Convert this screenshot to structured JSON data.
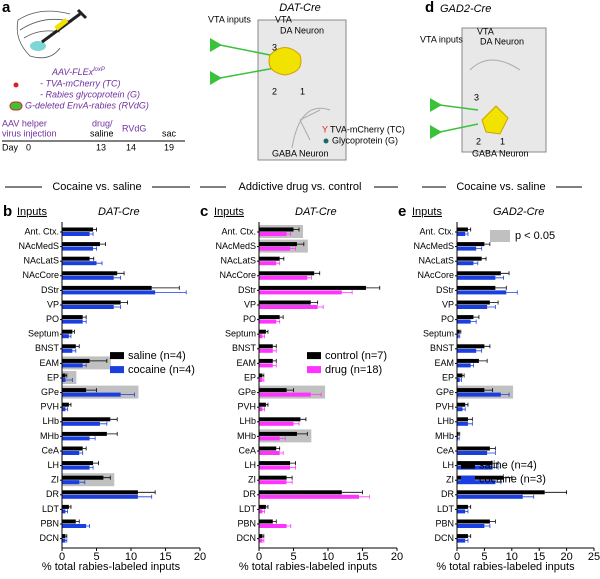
{
  "figure": {
    "panel_a": {
      "letter": "a",
      "construct": "AAV-FLEx",
      "construct_sup": "loxP",
      "items": [
        "- TVA-mCherry (TC)",
        "- Rabies glycoprotein (G)"
      ],
      "rabies": "G-deleted EnvA-rabies (RVdG)",
      "timeline": {
        "helper": "AAV helper",
        "helper2": "virus injection",
        "day": "Day",
        "d0": "0",
        "drug": "drug/",
        "drug2": "saline",
        "d13": "13",
        "rvdg": "RVdG",
        "d14": "14",
        "sac": "sac",
        "d19": "19"
      }
    },
    "schematic_dat": {
      "title": "DAT-Cre",
      "inputs": "VTA inputs",
      "vta": "VTA",
      "da": "DA Neuron",
      "gaba": "GABA Neuron",
      "tc": "TVA-mCherry (TC)",
      "g": "Glycoprotein (G)",
      "n1": "1",
      "n2": "2",
      "n3": "3"
    },
    "panel_d": {
      "letter": "d",
      "title": "GAD2-Cre",
      "inputs": "VTA inputs",
      "vta": "VTA",
      "da": "DA Neuron",
      "gaba": "GABA Neuron",
      "n1": "1",
      "n2": "2",
      "n3": "3"
    },
    "sections": [
      "Cocaine vs. saline",
      "Addictive drug vs. control",
      "Cocaine vs. saline"
    ]
  },
  "chart_data": [
    {
      "type": "hbar",
      "panel": "b",
      "heading": "Inputs",
      "title": "DAT-Cre",
      "x_label": "% total rabies-labeled inputs",
      "categories": [
        "Ant. Ctx.",
        "NAcMedS",
        "NAcLatS",
        "NAcCore",
        "DStr",
        "VP",
        "PO",
        "Septum",
        "BNST",
        "EAM",
        "EP",
        "GPe",
        "PVH",
        "LHb",
        "MHb",
        "CeA",
        "LH",
        "ZI",
        "DR",
        "LDT",
        "PBN",
        "DCN"
      ],
      "series": [
        {
          "name": "saline (n=4)",
          "color": "#000000",
          "values": [
            4.5,
            5.5,
            4,
            8,
            13,
            8.5,
            3,
            1.5,
            2,
            4,
            0.5,
            3.5,
            1,
            7,
            6.5,
            3,
            4.5,
            6,
            11,
            1,
            2,
            0.5
          ],
          "errors": [
            0.5,
            0.8,
            0.6,
            1,
            4,
            1,
            0.5,
            0.3,
            0.5,
            2.5,
            0.2,
            1.5,
            0.3,
            1,
            1.5,
            0.5,
            0.8,
            1,
            2.5,
            0.3,
            0.5,
            0.2
          ]
        },
        {
          "name": "cocaine (n=4)",
          "color": "#1a3fe0",
          "values": [
            4,
            4.5,
            5,
            7.5,
            13.5,
            7.5,
            3,
            1,
            1.5,
            3,
            0.5,
            8.5,
            0.5,
            5.5,
            4,
            2.5,
            4,
            2.5,
            11,
            0.5,
            3.5,
            0.5
          ],
          "errors": [
            0.5,
            0.5,
            0.8,
            1,
            4.5,
            1,
            0.5,
            0.3,
            0.5,
            0.5,
            1,
            2,
            0.3,
            1,
            0.8,
            0.5,
            0.5,
            0.8,
            2,
            0.3,
            0.5,
            0.2
          ]
        }
      ],
      "xlim": [
        0,
        20
      ],
      "xticks": [
        0,
        5,
        10,
        15,
        20
      ],
      "highlight": [
        9,
        10,
        11,
        17
      ],
      "highlight_color": "#c0c0c0",
      "legend": "middle"
    },
    {
      "type": "hbar",
      "panel": "c",
      "heading": "Inputs",
      "title": "DAT-Cre",
      "x_label": "% total rabies-labeled inputs",
      "categories": [
        "Ant. Ctx.",
        "NAcMedS",
        "NAcLatS",
        "NAcCore",
        "DStr",
        "VP",
        "PO",
        "Septum",
        "BNST",
        "EAM",
        "EP",
        "GPe",
        "PVH",
        "LHb",
        "MHb",
        "CeA",
        "LH",
        "ZI",
        "DR",
        "LDT",
        "PBN",
        "DCN"
      ],
      "series": [
        {
          "name": "control (n=7)",
          "color": "#000000",
          "values": [
            5,
            5.5,
            3,
            8,
            15.5,
            7.5,
            3,
            1,
            2,
            2,
            0.5,
            4,
            1,
            6,
            5.5,
            2.5,
            4.5,
            4,
            12,
            1,
            2,
            0.5
          ],
          "errors": [
            0.8,
            1,
            0.6,
            0.8,
            2,
            1,
            0.5,
            0.3,
            0.5,
            0.5,
            0.2,
            1,
            0.3,
            0.8,
            1.5,
            0.5,
            0.8,
            0.8,
            3,
            0.3,
            0.5,
            0.2
          ]
        },
        {
          "name": "drug (n=18)",
          "color": "#ff33ff",
          "values": [
            4,
            4.5,
            2.5,
            7,
            12,
            8.5,
            2.5,
            0.5,
            2,
            2,
            0.5,
            7.5,
            0.5,
            5,
            3,
            3,
            4.5,
            4,
            14.5,
            0.5,
            4,
            0.5
          ],
          "errors": [
            0.6,
            0.8,
            0.5,
            0.6,
            1.5,
            0.8,
            0.5,
            0.3,
            0.5,
            0.5,
            0.2,
            1.5,
            0.3,
            0.8,
            0.8,
            0.5,
            0.8,
            0.8,
            1.5,
            0.3,
            0.6,
            0.2
          ]
        }
      ],
      "xlim": [
        0,
        20
      ],
      "xticks": [
        0,
        5,
        10,
        15,
        20
      ],
      "highlight": [
        0,
        1,
        11,
        14
      ],
      "highlight_color": "#c0c0c0",
      "legend": "middle"
    },
    {
      "type": "hbar",
      "panel": "e",
      "heading": "Inputs",
      "title": "GAD2-Cre",
      "x_label": "% total rabies-labeled inputs",
      "categories": [
        "Ant. Ctx.",
        "NAcMedS",
        "NAcLatS",
        "NAcCore",
        "DStr",
        "VP",
        "PO",
        "Septum",
        "BNST",
        "EAM",
        "EP",
        "GPe",
        "PVH",
        "LHb",
        "MHb",
        "CeA",
        "LH",
        "ZI",
        "DR",
        "LDT",
        "PBN",
        "DCN"
      ],
      "series": [
        {
          "name": "saline (n=4)",
          "color": "#000000",
          "values": [
            2,
            5,
            4.5,
            8,
            7,
            6,
            3,
            0.5,
            5,
            4,
            1,
            5,
            1.5,
            2,
            0.3,
            6,
            6.5,
            8.5,
            16,
            2,
            6,
            2
          ],
          "errors": [
            0.5,
            1,
            0.8,
            1.5,
            2,
            1.5,
            1,
            0.2,
            1,
            1.5,
            0.3,
            1.5,
            0.5,
            0.8,
            0.2,
            1,
            1,
            1.5,
            4,
            0.5,
            1,
            0.5
          ]
        },
        {
          "name": "cocaine (n=3)",
          "color": "#1a3fe0",
          "values": [
            1.5,
            3.5,
            3,
            7,
            9,
            5.5,
            2.5,
            0.3,
            3.5,
            2.5,
            0.5,
            8,
            1,
            2,
            0.2,
            5.5,
            6.5,
            7,
            12,
            1.5,
            5,
            1.5
          ],
          "errors": [
            0.5,
            1,
            0.8,
            1.5,
            2,
            1.5,
            1,
            0.2,
            1,
            0.5,
            0.3,
            1.5,
            0.5,
            0.8,
            0.2,
            1.5,
            1,
            1,
            2,
            0.5,
            1,
            0.5
          ]
        }
      ],
      "xlim": [
        0,
        25
      ],
      "xticks": [
        0,
        5,
        10,
        15,
        20,
        25
      ],
      "highlight": [
        11
      ],
      "highlight_color": "#c0c0c0",
      "highlight_label": "p < 0.05",
      "legend": "lower"
    }
  ]
}
